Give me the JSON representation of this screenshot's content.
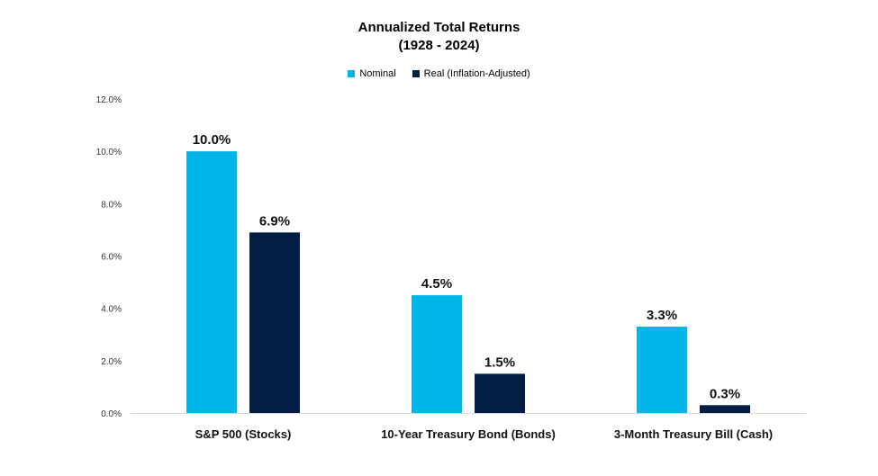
{
  "chart_data": {
    "type": "bar",
    "title": "Annualized Total Returns",
    "subtitle": "(1928 - 2024)",
    "categories": [
      "S&P 500 (Stocks)",
      "10-Year Treasury Bond (Bonds)",
      "3-Month Treasury Bill (Cash)"
    ],
    "series": [
      {
        "name": "Nominal",
        "values": [
          10.0,
          4.5,
          3.3
        ],
        "color": "#00B5E8"
      },
      {
        "name": "Real (Inflation-Adjusted)",
        "values": [
          6.9,
          1.5,
          0.3
        ],
        "color": "#031D44"
      }
    ],
    "data_labels": [
      [
        "10.0%",
        "4.5%",
        "3.3%"
      ],
      [
        "6.9%",
        "1.5%",
        "0.3%"
      ]
    ],
    "y_ticks": [
      "0.0%",
      "2.0%",
      "4.0%",
      "6.0%",
      "8.0%",
      "10.0%",
      "12.0%"
    ],
    "ylim": [
      0,
      12
    ],
    "xlabel": "",
    "ylabel": "",
    "grid": false,
    "legend_position": "top"
  }
}
